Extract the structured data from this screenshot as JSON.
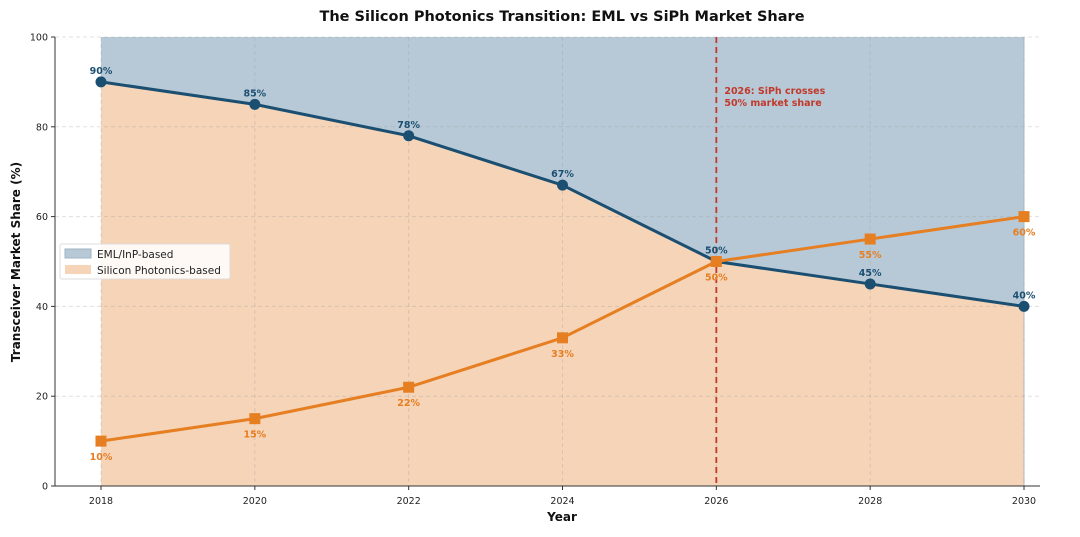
{
  "chart_data": {
    "type": "area",
    "title": "The Silicon Photonics Transition: EML vs SiPh Market Share",
    "xlabel": "Year",
    "ylabel": "Transceiver Market Share (%)",
    "x": [
      2018,
      2020,
      2022,
      2024,
      2026,
      2028,
      2030
    ],
    "xlim": [
      2017.4,
      2030.2
    ],
    "ylim": [
      0,
      100
    ],
    "xticks": [
      "2018",
      "2020",
      "2022",
      "2024",
      "2026",
      "2028",
      "2030"
    ],
    "yticks": [
      "0",
      "20",
      "40",
      "60",
      "80",
      "100"
    ],
    "grid": true,
    "legend_position": "center-left",
    "series": [
      {
        "name": "EML/InP-based",
        "values": [
          90,
          85,
          78,
          67,
          50,
          45,
          40
        ],
        "labels": [
          "90%",
          "85%",
          "78%",
          "67%",
          "50%",
          "45%",
          "40%"
        ],
        "color": "#1b4f72",
        "fill": "#b7c9d6"
      },
      {
        "name": "Silicon Photonics-based",
        "values": [
          10,
          15,
          22,
          33,
          50,
          55,
          60
        ],
        "labels": [
          "10%",
          "15%",
          "22%",
          "33%",
          "50%",
          "55%",
          "60%"
        ],
        "color": "#e67e22",
        "fill": "#f5d4b8"
      }
    ],
    "annotation": {
      "x": 2026,
      "line1": "2026: SiPh crosses",
      "line2": "50% market share",
      "color": "#c0392b"
    }
  }
}
